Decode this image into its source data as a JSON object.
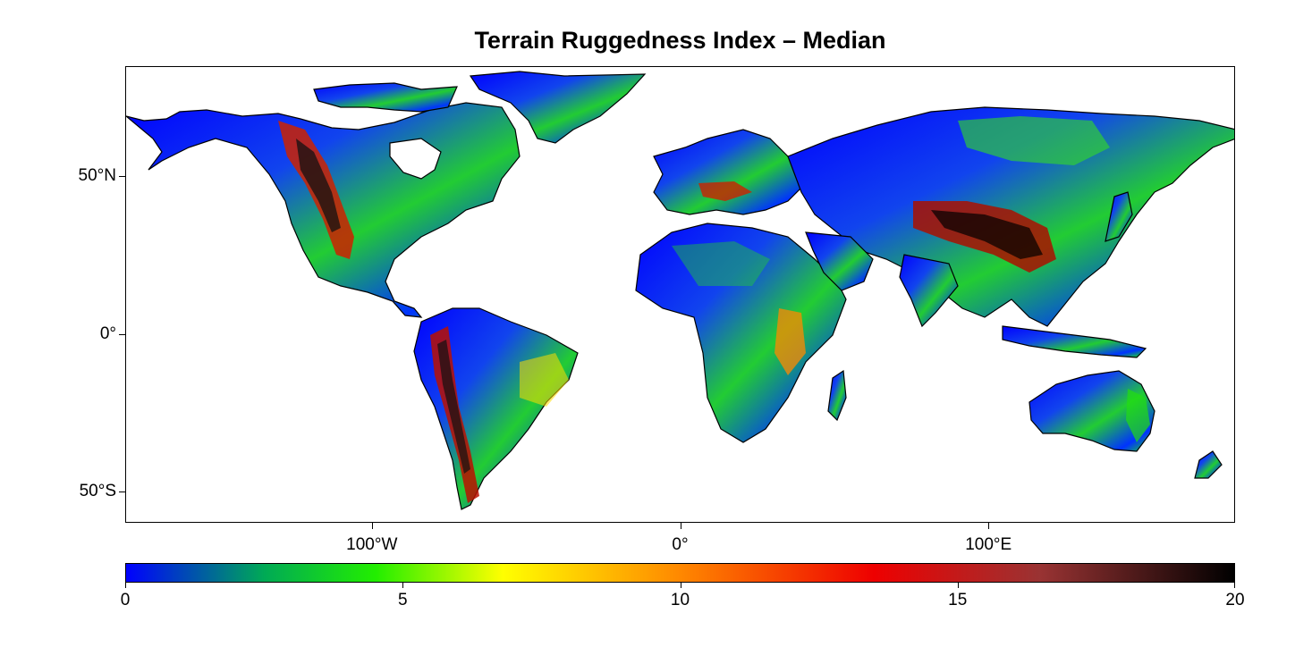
{
  "title": "Terrain Ruggedness Index – Median",
  "map": {
    "projection": "equirectangular",
    "lon_range": [
      -180,
      180
    ],
    "lat_range": [
      -60,
      85
    ],
    "lat_ticks": [
      {
        "value": 50,
        "label": "50°N"
      },
      {
        "value": 0,
        "label": "0°"
      },
      {
        "value": -50,
        "label": "50°S"
      }
    ],
    "lon_ticks": [
      {
        "value": -100,
        "label": "100°W"
      },
      {
        "value": 0,
        "label": "0°"
      },
      {
        "value": 100,
        "label": "100°E"
      }
    ]
  },
  "colorbar": {
    "min": 0,
    "max": 20,
    "ticks": [
      {
        "value": 0,
        "label": "0"
      },
      {
        "value": 5,
        "label": "5"
      },
      {
        "value": 10,
        "label": "10"
      },
      {
        "value": 15,
        "label": "15"
      },
      {
        "value": 20,
        "label": "20"
      }
    ],
    "stops": [
      {
        "value": 0,
        "color": "#0000ff"
      },
      {
        "value": 2.5,
        "color": "#00aa55"
      },
      {
        "value": 4.5,
        "color": "#22ee00"
      },
      {
        "value": 6.8,
        "color": "#ffff00"
      },
      {
        "value": 10,
        "color": "#ff8800"
      },
      {
        "value": 13.5,
        "color": "#ee0000"
      },
      {
        "value": 16.5,
        "color": "#993333"
      },
      {
        "value": 20,
        "color": "#000000"
      }
    ]
  },
  "colors": {
    "low_blue": "#0000ff",
    "green": "#22ee00",
    "yellow": "#ffff00",
    "orange": "#ff8800",
    "red": "#ee0000",
    "black": "#000000"
  }
}
